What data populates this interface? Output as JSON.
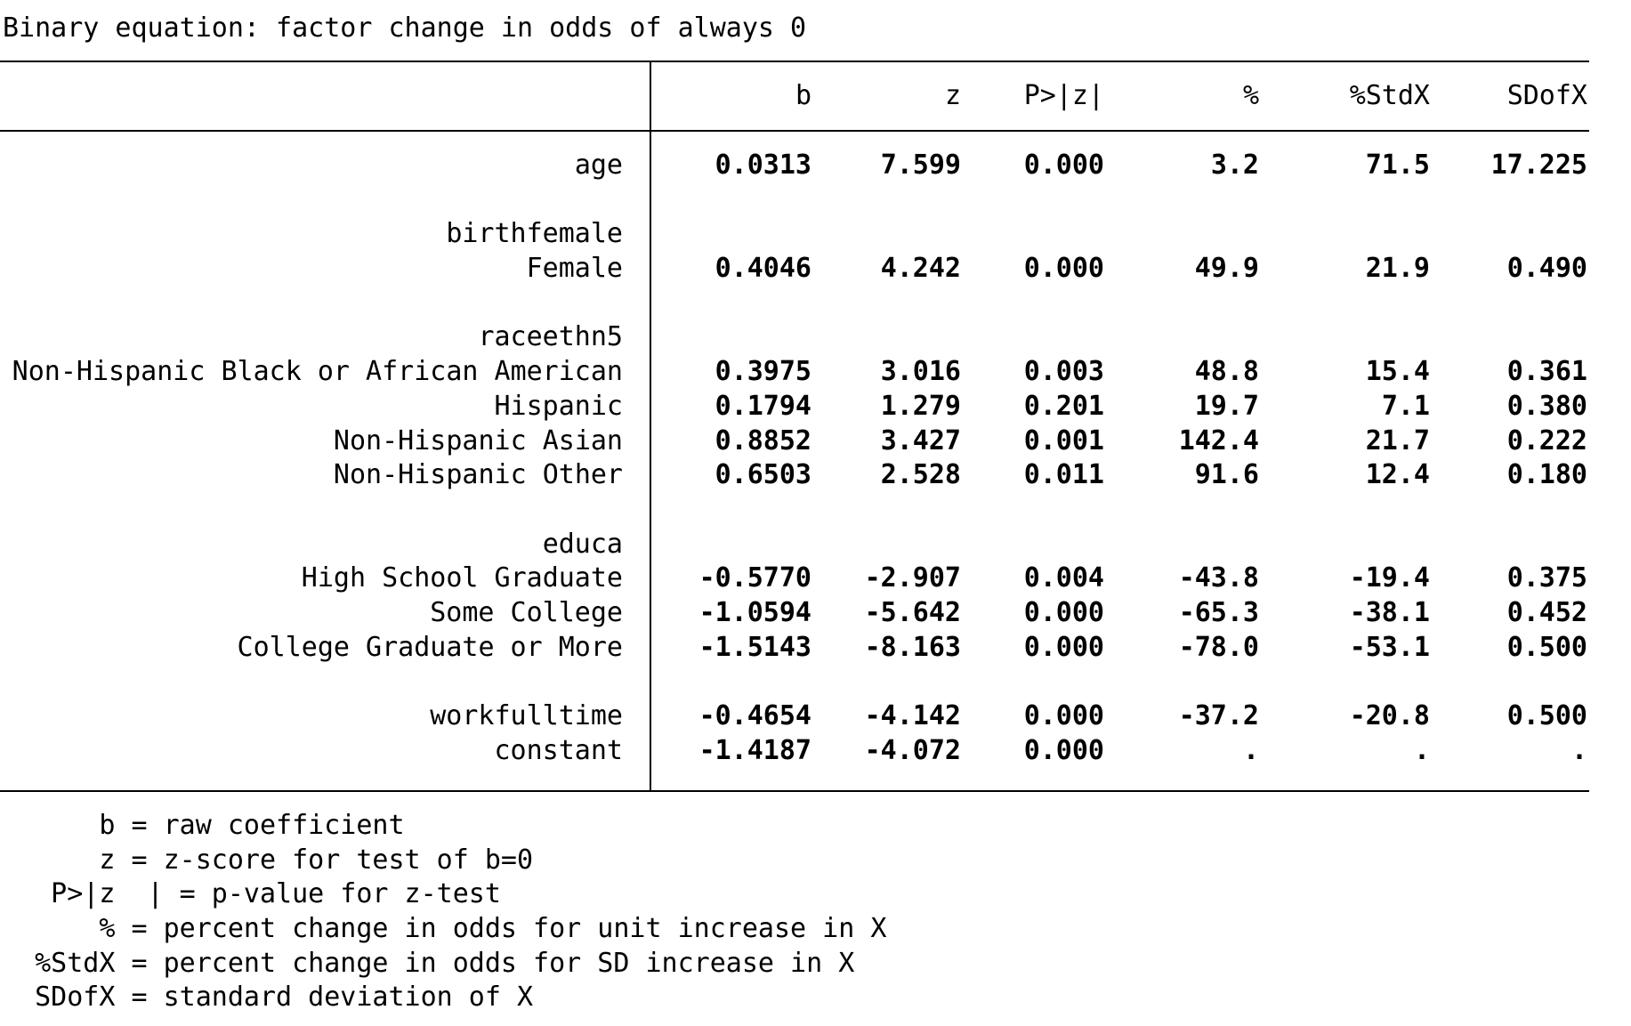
{
  "title": "Binary equation: factor change in odds of always 0",
  "table": {
    "columns": [
      "b",
      "z",
      "P>|z|",
      "%",
      "%StdX",
      "SDofX"
    ],
    "rows": [
      {
        "label": "age",
        "b": "0.0313",
        "z": "7.599",
        "p": "0.000",
        "pct": "3.2",
        "stdx": "71.5",
        "sd": "17.225"
      },
      {
        "label": "",
        "b": "",
        "z": "",
        "p": "",
        "pct": "",
        "stdx": "",
        "sd": ""
      },
      {
        "label": "birthfemale",
        "b": "",
        "z": "",
        "p": "",
        "pct": "",
        "stdx": "",
        "sd": ""
      },
      {
        "label": "Female",
        "b": "0.4046",
        "z": "4.242",
        "p": "0.000",
        "pct": "49.9",
        "stdx": "21.9",
        "sd": "0.490"
      },
      {
        "label": "",
        "b": "",
        "z": "",
        "p": "",
        "pct": "",
        "stdx": "",
        "sd": ""
      },
      {
        "label": "raceethn5",
        "b": "",
        "z": "",
        "p": "",
        "pct": "",
        "stdx": "",
        "sd": ""
      },
      {
        "label": "Non-Hispanic Black or African American",
        "b": "0.3975",
        "z": "3.016",
        "p": "0.003",
        "pct": "48.8",
        "stdx": "15.4",
        "sd": "0.361"
      },
      {
        "label": "Hispanic",
        "b": "0.1794",
        "z": "1.279",
        "p": "0.201",
        "pct": "19.7",
        "stdx": "7.1",
        "sd": "0.380"
      },
      {
        "label": "Non-Hispanic Asian",
        "b": "0.8852",
        "z": "3.427",
        "p": "0.001",
        "pct": "142.4",
        "stdx": "21.7",
        "sd": "0.222"
      },
      {
        "label": "Non-Hispanic Other",
        "b": "0.6503",
        "z": "2.528",
        "p": "0.011",
        "pct": "91.6",
        "stdx": "12.4",
        "sd": "0.180"
      },
      {
        "label": "",
        "b": "",
        "z": "",
        "p": "",
        "pct": "",
        "stdx": "",
        "sd": ""
      },
      {
        "label": "educa",
        "b": "",
        "z": "",
        "p": "",
        "pct": "",
        "stdx": "",
        "sd": ""
      },
      {
        "label": "High School Graduate",
        "b": "-0.5770",
        "z": "-2.907",
        "p": "0.004",
        "pct": "-43.8",
        "stdx": "-19.4",
        "sd": "0.375"
      },
      {
        "label": "Some College",
        "b": "-1.0594",
        "z": "-5.642",
        "p": "0.000",
        "pct": "-65.3",
        "stdx": "-38.1",
        "sd": "0.452"
      },
      {
        "label": "College Graduate or More",
        "b": "-1.5143",
        "z": "-8.163",
        "p": "0.000",
        "pct": "-78.0",
        "stdx": "-53.1",
        "sd": "0.500"
      },
      {
        "label": "",
        "b": "",
        "z": "",
        "p": "",
        "pct": "",
        "stdx": "",
        "sd": ""
      },
      {
        "label": "workfulltime",
        "b": "-0.4654",
        "z": "-4.142",
        "p": "0.000",
        "pct": "-37.2",
        "stdx": "-20.8",
        "sd": "0.500"
      },
      {
        "label": "constant",
        "b": "-1.4187",
        "z": "-4.072",
        "p": "0.000",
        "pct": ".",
        "stdx": ".",
        "sd": "."
      }
    ]
  },
  "legend": {
    "lines": [
      "      b = raw coefficient",
      "      z = z-score for test of b=0",
      "   P>|z  | = p-value for z-test",
      "      % = percent change in odds for unit increase in X",
      "  %StdX = percent change in odds for SD increase in X",
      "  SDofX = standard deviation of X"
    ]
  },
  "colors": {
    "text": "#000000",
    "background": "#ffffff",
    "rule": "#000000"
  }
}
